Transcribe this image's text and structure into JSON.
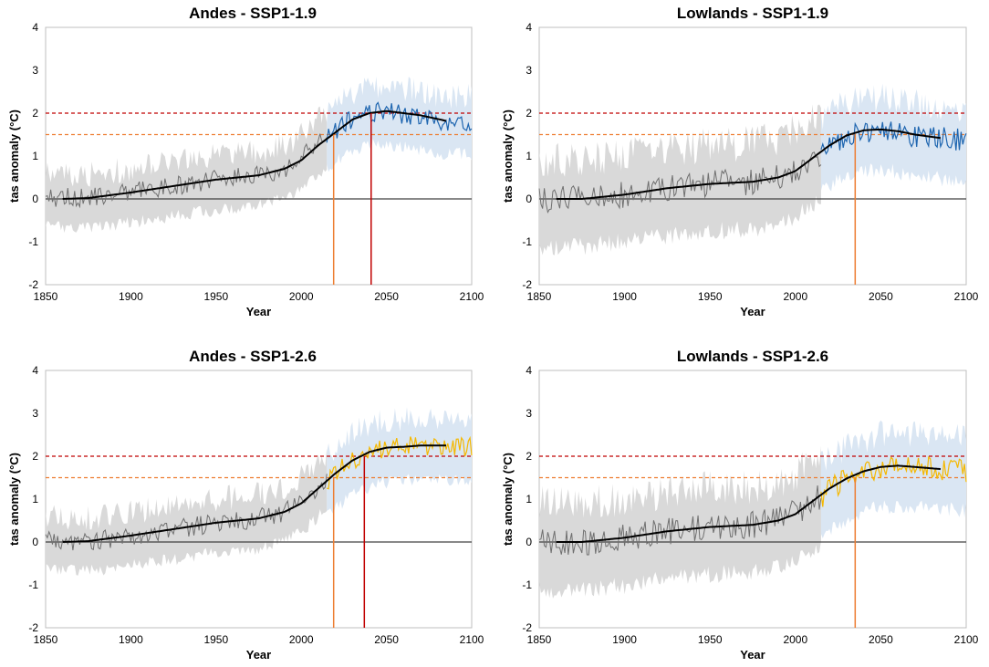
{
  "colors": {
    "hist_band": "#d9d9d9",
    "hist_line": "#6f6f6f",
    "scen_band": "#dae6f3",
    "ssp119_line": "#1f66b0",
    "ssp126_line": "#f5b800",
    "mean_line": "#000000",
    "threshold_2": "#c00000",
    "threshold_15": "#ed7d31",
    "zero_line": "#404040"
  },
  "chart_data": [
    {
      "type": "line",
      "title": "Andes - SSP1-1.9",
      "xlabel": "Year",
      "ylabel": "tas anomaly (°C)",
      "xlim": [
        1850,
        2100
      ],
      "ylim": [
        -2,
        4
      ],
      "xticks": [
        1850,
        1900,
        1950,
        2000,
        2050,
        2100
      ],
      "yticks": [
        4,
        3,
        2,
        1,
        0,
        -1,
        -2
      ],
      "scenario": "ssp119",
      "thresholds": [
        2.0,
        1.5
      ],
      "crossings": [
        {
          "level": 1.5,
          "year": 2019
        },
        {
          "level": 2.0,
          "year": 2041
        }
      ],
      "series": [
        {
          "name": "historical",
          "smoothed": [
            [
              1850,
              0.05
            ],
            [
              1875,
              0.02
            ],
            [
              1900,
              0.15
            ],
            [
              1925,
              0.3
            ],
            [
              1950,
              0.45
            ],
            [
              1975,
              0.55
            ],
            [
              1990,
              0.7
            ],
            [
              2000,
              0.95
            ],
            [
              2010,
              1.3
            ],
            [
              2015,
              1.45
            ]
          ],
          "spread": 0.55,
          "amp": 0.25,
          "end_year": 2015
        },
        {
          "name": "scenario",
          "smoothed": [
            [
              2015,
              1.45
            ],
            [
              2025,
              1.75
            ],
            [
              2035,
              1.95
            ],
            [
              2045,
              2.05
            ],
            [
              2055,
              2.0
            ],
            [
              2065,
              1.95
            ],
            [
              2075,
              1.85
            ],
            [
              2085,
              1.8
            ],
            [
              2100,
              1.8
            ]
          ],
          "spread": 0.6,
          "amp": 0.25,
          "start_year": 2015
        }
      ],
      "mean_curve": [
        [
          1860,
          0.0
        ],
        [
          1875,
          0.02
        ],
        [
          1900,
          0.15
        ],
        [
          1925,
          0.3
        ],
        [
          1950,
          0.45
        ],
        [
          1975,
          0.55
        ],
        [
          1990,
          0.7
        ],
        [
          2000,
          0.9
        ],
        [
          2010,
          1.25
        ],
        [
          2020,
          1.55
        ],
        [
          2030,
          1.85
        ],
        [
          2040,
          2.0
        ],
        [
          2050,
          2.05
        ],
        [
          2060,
          2.0
        ],
        [
          2070,
          1.95
        ],
        [
          2085,
          1.82
        ]
      ]
    },
    {
      "type": "line",
      "title": "Lowlands - SSP1-1.9",
      "xlabel": "Year",
      "ylabel": "tas anomaly (°C)",
      "xlim": [
        1850,
        2100
      ],
      "ylim": [
        -2,
        4
      ],
      "xticks": [
        1850,
        1900,
        1950,
        2000,
        2050,
        2100
      ],
      "yticks": [
        4,
        3,
        2,
        1,
        0,
        -1,
        -2
      ],
      "scenario": "ssp119",
      "thresholds": [
        2.0,
        1.5
      ],
      "crossings": [
        {
          "level": 1.5,
          "year": 2035
        }
      ],
      "series": [
        {
          "name": "historical",
          "smoothed": [
            [
              1850,
              0.0
            ],
            [
              1875,
              0.0
            ],
            [
              1900,
              0.1
            ],
            [
              1925,
              0.25
            ],
            [
              1950,
              0.35
            ],
            [
              1975,
              0.4
            ],
            [
              1990,
              0.5
            ],
            [
              2000,
              0.7
            ],
            [
              2010,
              0.95
            ],
            [
              2015,
              1.1
            ]
          ],
          "spread": 0.9,
          "amp": 0.35,
          "end_year": 2015
        },
        {
          "name": "scenario",
          "smoothed": [
            [
              2015,
              1.1
            ],
            [
              2025,
              1.35
            ],
            [
              2035,
              1.55
            ],
            [
              2045,
              1.6
            ],
            [
              2055,
              1.6
            ],
            [
              2065,
              1.5
            ],
            [
              2075,
              1.45
            ],
            [
              2085,
              1.4
            ],
            [
              2100,
              1.4
            ]
          ],
          "spread": 0.75,
          "amp": 0.3,
          "start_year": 2015
        }
      ],
      "mean_curve": [
        [
          1860,
          0.0
        ],
        [
          1875,
          0.0
        ],
        [
          1900,
          0.1
        ],
        [
          1925,
          0.25
        ],
        [
          1950,
          0.35
        ],
        [
          1975,
          0.4
        ],
        [
          1990,
          0.5
        ],
        [
          2000,
          0.65
        ],
        [
          2010,
          0.95
        ],
        [
          2020,
          1.25
        ],
        [
          2030,
          1.48
        ],
        [
          2040,
          1.6
        ],
        [
          2050,
          1.62
        ],
        [
          2060,
          1.58
        ],
        [
          2070,
          1.5
        ],
        [
          2085,
          1.42
        ]
      ]
    },
    {
      "type": "line",
      "title": "Andes - SSP1-2.6",
      "xlabel": "Year",
      "ylabel": "tas anomaly (°C)",
      "xlim": [
        1850,
        2100
      ],
      "ylim": [
        -2,
        4
      ],
      "xticks": [
        1850,
        1900,
        1950,
        2000,
        2050,
        2100
      ],
      "yticks": [
        4,
        3,
        2,
        1,
        0,
        -1,
        -2
      ],
      "scenario": "ssp126",
      "thresholds": [
        2.0,
        1.5
      ],
      "crossings": [
        {
          "level": 1.5,
          "year": 2019
        },
        {
          "level": 2.0,
          "year": 2037
        }
      ],
      "series": [
        {
          "name": "historical",
          "smoothed": [
            [
              1850,
              0.05
            ],
            [
              1875,
              0.02
            ],
            [
              1900,
              0.15
            ],
            [
              1925,
              0.3
            ],
            [
              1950,
              0.45
            ],
            [
              1975,
              0.55
            ],
            [
              1990,
              0.7
            ],
            [
              2000,
              0.95
            ],
            [
              2010,
              1.3
            ],
            [
              2015,
              1.45
            ]
          ],
          "spread": 0.55,
          "amp": 0.25,
          "end_year": 2015
        },
        {
          "name": "scenario",
          "smoothed": [
            [
              2015,
              1.4
            ],
            [
              2025,
              1.75
            ],
            [
              2035,
              2.0
            ],
            [
              2045,
              2.15
            ],
            [
              2055,
              2.2
            ],
            [
              2065,
              2.25
            ],
            [
              2075,
              2.25
            ],
            [
              2085,
              2.25
            ],
            [
              2100,
              2.2
            ]
          ],
          "spread": 0.65,
          "amp": 0.25,
          "start_year": 2015
        }
      ],
      "mean_curve": [
        [
          1860,
          0.0
        ],
        [
          1875,
          0.02
        ],
        [
          1900,
          0.15
        ],
        [
          1925,
          0.3
        ],
        [
          1950,
          0.45
        ],
        [
          1975,
          0.55
        ],
        [
          1990,
          0.7
        ],
        [
          2000,
          0.9
        ],
        [
          2010,
          1.25
        ],
        [
          2020,
          1.6
        ],
        [
          2030,
          1.9
        ],
        [
          2040,
          2.1
        ],
        [
          2050,
          2.2
        ],
        [
          2060,
          2.22
        ],
        [
          2070,
          2.25
        ],
        [
          2085,
          2.25
        ]
      ]
    },
    {
      "type": "line",
      "title": "Lowlands - SSP1-2.6",
      "xlabel": "Year",
      "ylabel": "tas anomaly (°C)",
      "xlim": [
        1850,
        2100
      ],
      "ylim": [
        -2,
        4
      ],
      "xticks": [
        1850,
        1900,
        1950,
        2000,
        2050,
        2100
      ],
      "yticks": [
        4,
        3,
        2,
        1,
        0,
        -1,
        -2
      ],
      "scenario": "ssp126",
      "thresholds": [
        2.0,
        1.5
      ],
      "crossings": [
        {
          "level": 1.5,
          "year": 2035
        }
      ],
      "series": [
        {
          "name": "historical",
          "smoothed": [
            [
              1850,
              0.0
            ],
            [
              1875,
              0.0
            ],
            [
              1900,
              0.1
            ],
            [
              1925,
              0.25
            ],
            [
              1950,
              0.35
            ],
            [
              1975,
              0.4
            ],
            [
              1990,
              0.5
            ],
            [
              2000,
              0.7
            ],
            [
              2010,
              0.95
            ],
            [
              2015,
              1.1
            ]
          ],
          "spread": 0.9,
          "amp": 0.35,
          "end_year": 2015
        },
        {
          "name": "scenario",
          "smoothed": [
            [
              2015,
              1.05
            ],
            [
              2025,
              1.35
            ],
            [
              2035,
              1.55
            ],
            [
              2045,
              1.7
            ],
            [
              2055,
              1.75
            ],
            [
              2065,
              1.78
            ],
            [
              2075,
              1.75
            ],
            [
              2085,
              1.7
            ],
            [
              2100,
              1.65
            ]
          ],
          "spread": 0.75,
          "amp": 0.3,
          "start_year": 2015
        }
      ],
      "mean_curve": [
        [
          1860,
          0.0
        ],
        [
          1875,
          0.0
        ],
        [
          1900,
          0.1
        ],
        [
          1925,
          0.25
        ],
        [
          1950,
          0.35
        ],
        [
          1975,
          0.4
        ],
        [
          1990,
          0.5
        ],
        [
          2000,
          0.65
        ],
        [
          2010,
          0.95
        ],
        [
          2020,
          1.25
        ],
        [
          2030,
          1.48
        ],
        [
          2040,
          1.65
        ],
        [
          2050,
          1.75
        ],
        [
          2060,
          1.78
        ],
        [
          2070,
          1.75
        ],
        [
          2085,
          1.7
        ]
      ]
    }
  ]
}
